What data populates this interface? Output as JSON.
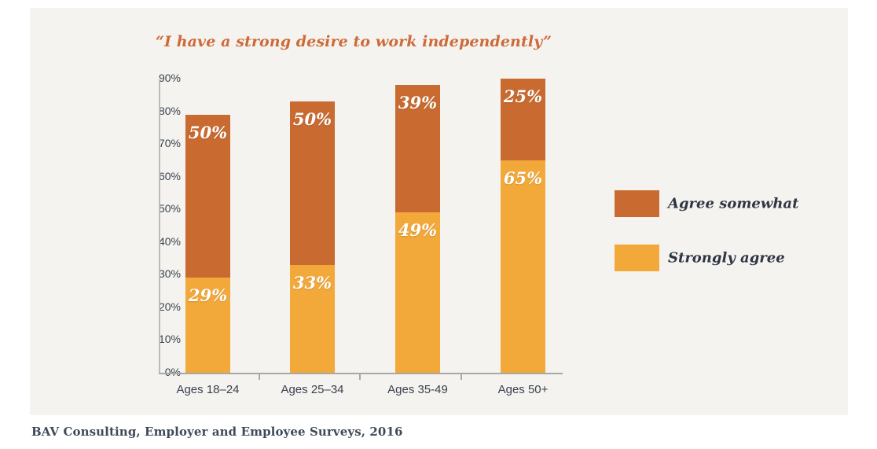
{
  "chart_data": {
    "type": "bar",
    "stacked": true,
    "title": "“I have a strong desire to work independently”",
    "categories": [
      "Ages 18–24",
      "Ages 25–34",
      "Ages 35-49",
      "Ages 50+"
    ],
    "series": [
      {
        "name": "Strongly agree",
        "color": "#f3a83a",
        "values": [
          29,
          33,
          49,
          65
        ]
      },
      {
        "name": "Agree somewhat",
        "color": "#c96a31",
        "values": [
          50,
          50,
          39,
          25
        ]
      }
    ],
    "totals": [
      79,
      83,
      88,
      90
    ],
    "value_label_suffix": "%",
    "ylabel": "",
    "xlabel": "",
    "ylim": [
      0,
      90
    ],
    "y_tick_step": 10,
    "y_tick_suffix": "%",
    "grid": false,
    "legend_position": "right",
    "legend_order": [
      "Agree somewhat",
      "Strongly agree"
    ]
  },
  "footer": {
    "source": "BAV Consulting, Employer and Employee Surveys, 2016"
  },
  "colors": {
    "panel_background": "#f5f3ef",
    "title_text": "#cd6a38",
    "axis_line": "#a8a8a8",
    "tick_text": "#39414f",
    "legend_text": "#2e3644",
    "source_text": "#3f4a59",
    "bar_strongly_agree": "#f3a83a",
    "bar_agree_somewhat": "#c96a31",
    "bar_value_text": "#ffffff"
  }
}
